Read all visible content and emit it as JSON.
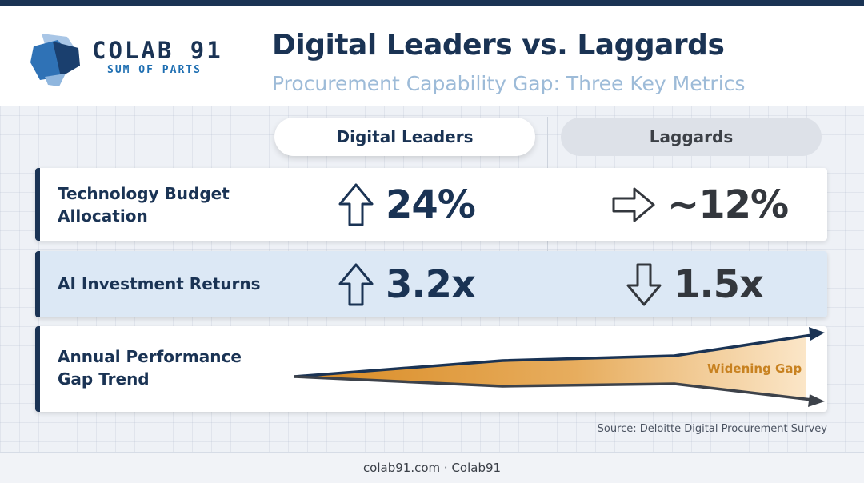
{
  "header": {
    "logo_name": "COLAB 91",
    "logo_tagline": "SUM OF PARTS",
    "title": "Digital Leaders vs. Laggards",
    "subtitle": "Procurement Capability Gap: Three Key Metrics"
  },
  "columns": {
    "leaders": "Digital Leaders",
    "laggards": "Laggards"
  },
  "rows": [
    {
      "label": "Technology Budget Allocation",
      "leaders": {
        "value": "24%",
        "icon": "arrow-up-icon"
      },
      "laggards": {
        "value": "~12%",
        "icon": "arrow-right-icon"
      }
    },
    {
      "label": "AI Investment Returns",
      "leaders": {
        "value": "3.2x",
        "icon": "arrow-up-icon"
      },
      "laggards": {
        "value": "1.5x",
        "icon": "arrow-down-icon"
      }
    },
    {
      "label": "Annual Performance Gap Trend",
      "trend_label": "Widening Gap"
    }
  ],
  "source": "Source: Deloitte Digital Procurement Survey",
  "footer": "colab91.com · Colab91",
  "colors": {
    "navy": "#1a3354",
    "accent_blue": "#1f6fb2",
    "light_blue_row": "#dce8f5",
    "gap_orange": "#e0a24a",
    "laggard_gray": "#dde1e8"
  }
}
